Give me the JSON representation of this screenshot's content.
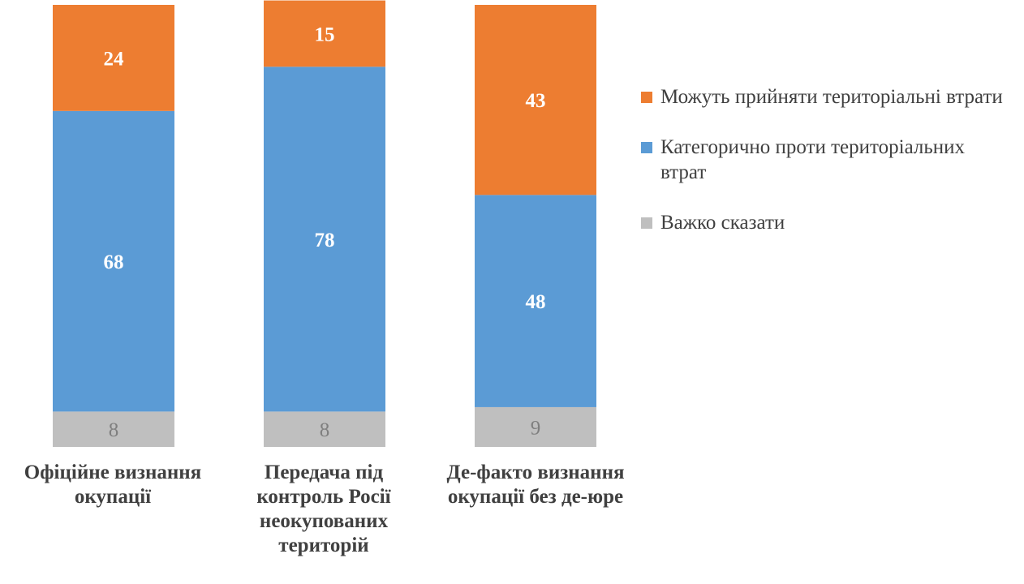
{
  "chart_data": {
    "type": "bar",
    "stacked": true,
    "orientation": "vertical",
    "categories": [
      "Офіційне визнання\nокупації",
      "Передача під\nконтроль Росії\nнеокупованих\nтериторій",
      "Де-факто визнання\nокупації без де-юре"
    ],
    "series": [
      {
        "name": "Важко сказати",
        "values": [
          8,
          8,
          9
        ],
        "color": "#bfbfbf",
        "label_color": "#7f7f7f"
      },
      {
        "name": "Категорично проти територіальних втрат",
        "values": [
          68,
          78,
          48
        ],
        "color": "#5b9bd5",
        "label_color": "#ffffff"
      },
      {
        "name": "Можуть прийняти територіальні втрати",
        "values": [
          24,
          15,
          43
        ],
        "color": "#ed7d31",
        "label_color": "#ffffff"
      }
    ],
    "legend_order": [
      "Можуть прийняти територіальні втрати",
      "Категорично проти територіальних втрат",
      "Важко сказати"
    ],
    "legend_position": "right",
    "ylim": [
      0,
      100
    ],
    "grid": false,
    "title": "",
    "xlabel": "",
    "ylabel": ""
  }
}
